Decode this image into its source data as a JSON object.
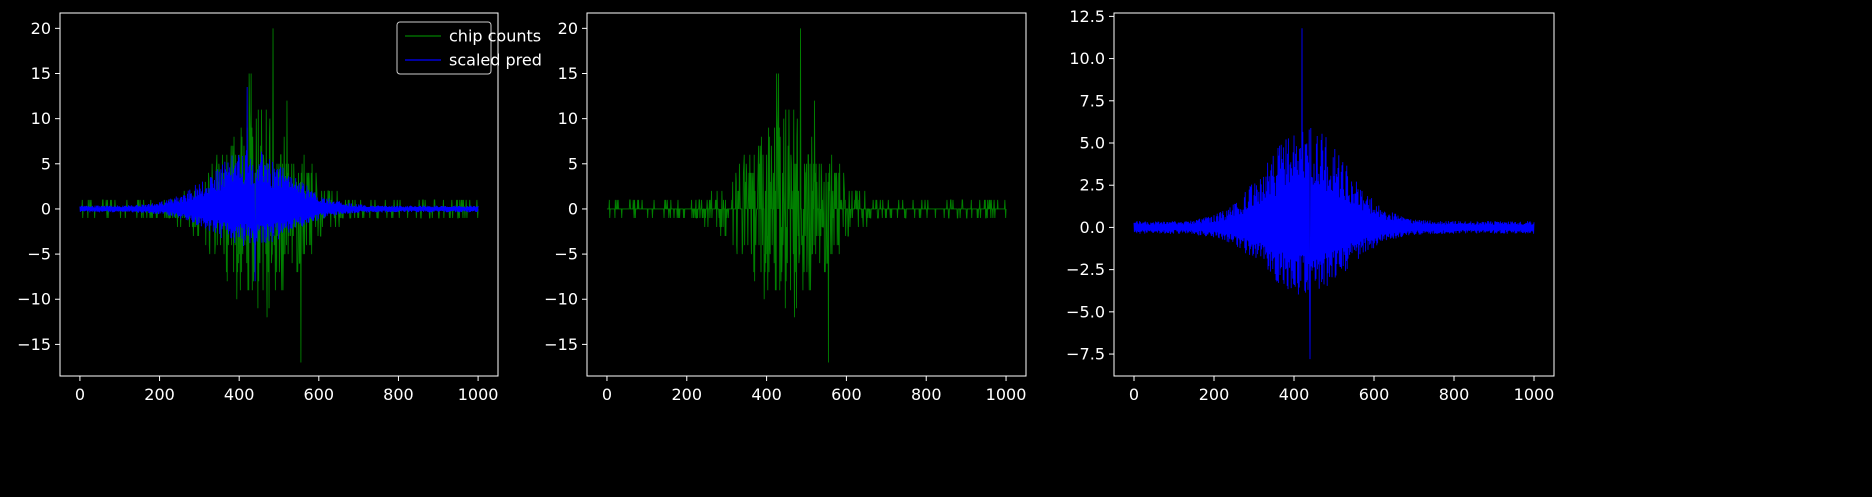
{
  "figure": {
    "background": "#000000",
    "foreground": "#ffffff"
  },
  "colors": {
    "green": "#008000",
    "blue": "#0000ff",
    "axis": "#ffffff"
  },
  "chart_data": [
    {
      "type": "line",
      "xlim": [
        -50,
        1050
      ],
      "ylim": [
        -18.5,
        21.7
      ],
      "xticks": [
        0,
        200,
        400,
        600,
        800,
        1000
      ],
      "yticks": [
        -15,
        -10,
        -5,
        0,
        5,
        10,
        15,
        20
      ],
      "xlabels": [
        "0",
        "200",
        "400",
        "600",
        "800",
        "1000"
      ],
      "ylabels": [
        "−15",
        "−10",
        "−5",
        "0",
        "5",
        "10",
        "15",
        "20"
      ],
      "grid": false,
      "legend": {
        "position": "top-right",
        "entries": [
          "chip counts",
          "scaled pred"
        ]
      },
      "series": [
        {
          "name": "chip counts",
          "color": "#008000",
          "kind": "spiky_counts",
          "envelope": {
            "center": 450,
            "width": 130,
            "peak": 15,
            "floor": 0.6
          },
          "max": 20,
          "min": -17
        },
        {
          "name": "scaled pred",
          "color": "#0000ff",
          "kind": "mirrored_band",
          "envelope": {
            "center": 430,
            "width": 140,
            "peak_pos": 13,
            "peak_neg": 8
          },
          "max": 13.5,
          "min": -8
        }
      ]
    },
    {
      "type": "line",
      "xlim": [
        -50,
        1050
      ],
      "ylim": [
        -18.5,
        21.7
      ],
      "xticks": [
        0,
        200,
        400,
        600,
        800,
        1000
      ],
      "yticks": [
        -15,
        -10,
        -5,
        0,
        5,
        10,
        15,
        20
      ],
      "xlabels": [
        "0",
        "200",
        "400",
        "600",
        "800",
        "1000"
      ],
      "ylabels": [
        "−15",
        "−10",
        "−5",
        "0",
        "5",
        "10",
        "15",
        "20"
      ],
      "grid": false,
      "series": [
        {
          "color": "#008000",
          "kind": "spiky_counts",
          "envelope": {
            "center": 450,
            "width": 130,
            "peak": 15,
            "floor": 0.6
          },
          "max": 20,
          "min": -17
        }
      ]
    },
    {
      "type": "line",
      "xlim": [
        -50,
        1050
      ],
      "ylim": [
        -8.8,
        12.7
      ],
      "xticks": [
        0,
        200,
        400,
        600,
        800,
        1000
      ],
      "yticks": [
        -7.5,
        -5.0,
        -2.5,
        0.0,
        2.5,
        5.0,
        7.5,
        10.0,
        12.5
      ],
      "xlabels": [
        "0",
        "200",
        "400",
        "600",
        "800",
        "1000"
      ],
      "ylabels": [
        "−7.5",
        "−5.0",
        "−2.5",
        "0.0",
        "2.5",
        "5.0",
        "7.5",
        "10.0",
        "12.5"
      ],
      "grid": false,
      "series": [
        {
          "color": "#0000ff",
          "kind": "mirrored_band",
          "envelope": {
            "center": 430,
            "width": 140,
            "peak_pos": 11.8,
            "peak_neg": 7.8
          },
          "max": 11.8,
          "min": -7.8
        }
      ]
    }
  ]
}
